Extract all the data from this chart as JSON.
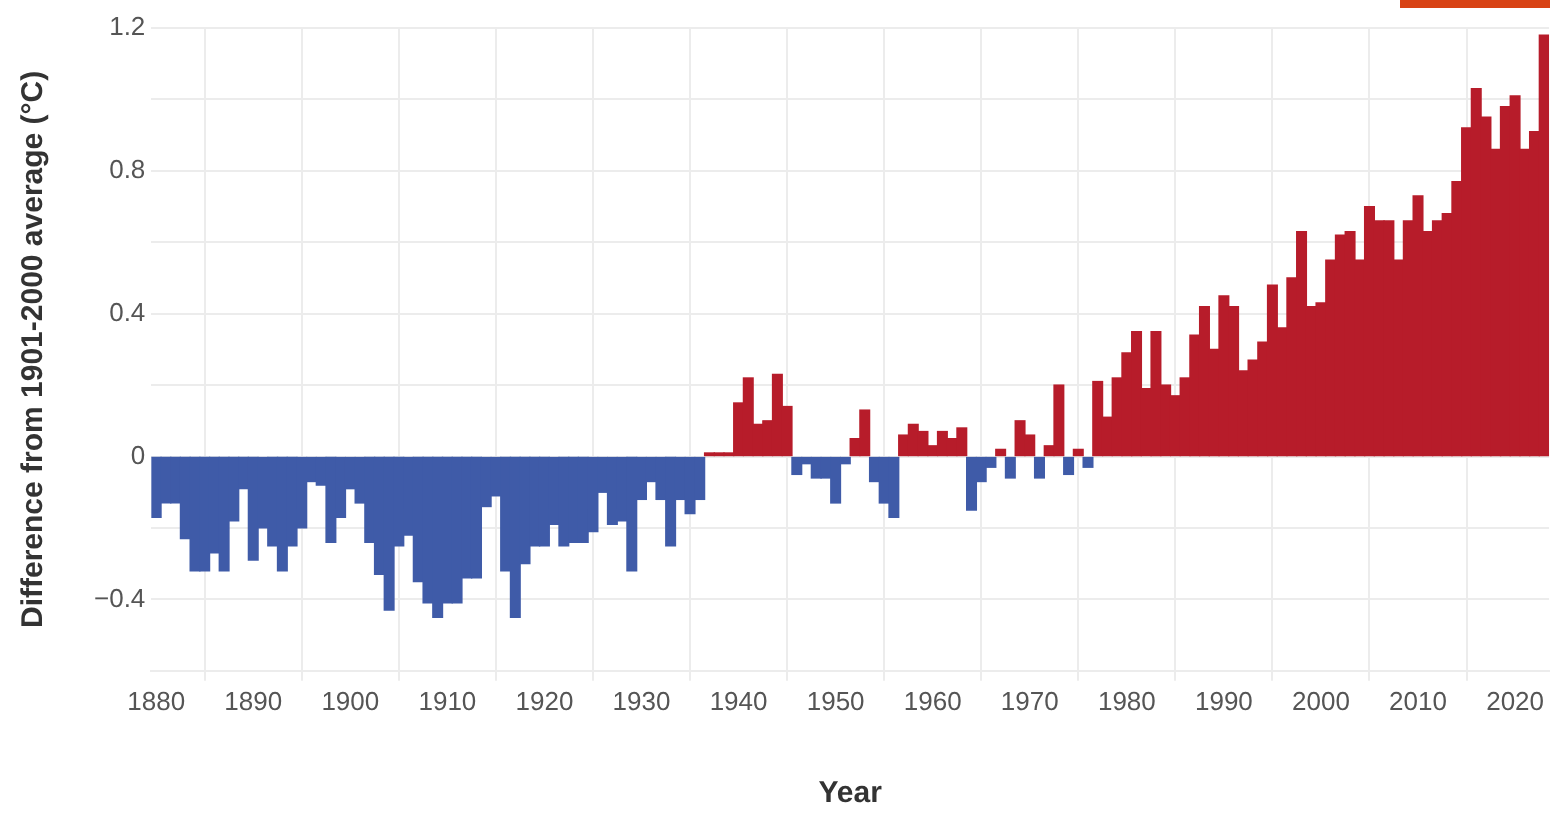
{
  "chart_data": {
    "type": "bar",
    "xlabel": "Year",
    "ylabel": "Difference from 1901-2000 average (°C)",
    "x": [
      1880,
      1881,
      1882,
      1883,
      1884,
      1885,
      1886,
      1887,
      1888,
      1889,
      1890,
      1891,
      1892,
      1893,
      1894,
      1895,
      1896,
      1897,
      1898,
      1899,
      1900,
      1901,
      1902,
      1903,
      1904,
      1905,
      1906,
      1907,
      1908,
      1909,
      1910,
      1911,
      1912,
      1913,
      1914,
      1915,
      1916,
      1917,
      1918,
      1919,
      1920,
      1921,
      1922,
      1923,
      1924,
      1925,
      1926,
      1927,
      1928,
      1929,
      1930,
      1931,
      1932,
      1933,
      1934,
      1935,
      1936,
      1937,
      1938,
      1939,
      1940,
      1941,
      1942,
      1943,
      1944,
      1945,
      1946,
      1947,
      1948,
      1949,
      1950,
      1951,
      1952,
      1953,
      1954,
      1955,
      1956,
      1957,
      1958,
      1959,
      1960,
      1961,
      1962,
      1963,
      1964,
      1965,
      1966,
      1967,
      1968,
      1969,
      1970,
      1971,
      1972,
      1973,
      1974,
      1975,
      1976,
      1977,
      1978,
      1979,
      1980,
      1981,
      1982,
      1983,
      1984,
      1985,
      1986,
      1987,
      1988,
      1989,
      1990,
      1991,
      1992,
      1993,
      1994,
      1995,
      1996,
      1997,
      1998,
      1999,
      2000,
      2001,
      2002,
      2003,
      2004,
      2005,
      2006,
      2007,
      2008,
      2009,
      2010,
      2011,
      2012,
      2013,
      2014,
      2015,
      2016,
      2017,
      2018,
      2019,
      2020,
      2021,
      2022,
      2023
    ],
    "values": [
      -0.17,
      -0.13,
      -0.13,
      -0.23,
      -0.32,
      -0.32,
      -0.27,
      -0.32,
      -0.18,
      -0.09,
      -0.29,
      -0.2,
      -0.25,
      -0.32,
      -0.25,
      -0.2,
      -0.07,
      -0.08,
      -0.24,
      -0.17,
      -0.09,
      -0.13,
      -0.24,
      -0.33,
      -0.43,
      -0.25,
      -0.22,
      -0.35,
      -0.41,
      -0.45,
      -0.41,
      -0.41,
      -0.34,
      -0.34,
      -0.14,
      -0.11,
      -0.32,
      -0.45,
      -0.3,
      -0.25,
      -0.25,
      -0.19,
      -0.25,
      -0.24,
      -0.24,
      -0.21,
      -0.1,
      -0.19,
      -0.18,
      -0.32,
      -0.12,
      -0.07,
      -0.12,
      -0.25,
      -0.12,
      -0.16,
      -0.12,
      0.01,
      0.01,
      0.01,
      0.15,
      0.22,
      0.09,
      0.1,
      0.23,
      0.14,
      -0.05,
      -0.02,
      -0.06,
      -0.06,
      -0.13,
      -0.02,
      0.05,
      0.13,
      -0.07,
      -0.13,
      -0.17,
      0.06,
      0.09,
      0.07,
      0.03,
      0.07,
      0.05,
      0.08,
      -0.15,
      -0.07,
      -0.03,
      0.02,
      -0.06,
      0.1,
      0.06,
      -0.06,
      0.03,
      0.2,
      -0.05,
      0.02,
      -0.03,
      0.21,
      0.11,
      0.22,
      0.29,
      0.35,
      0.19,
      0.35,
      0.2,
      0.17,
      0.22,
      0.34,
      0.42,
      0.3,
      0.45,
      0.42,
      0.24,
      0.27,
      0.32,
      0.48,
      0.36,
      0.5,
      0.63,
      0.42,
      0.43,
      0.55,
      0.62,
      0.63,
      0.55,
      0.7,
      0.66,
      0.66,
      0.55,
      0.66,
      0.73,
      0.63,
      0.66,
      0.68,
      0.77,
      0.92,
      1.03,
      0.95,
      0.86,
      0.98,
      1.01,
      0.86,
      0.91,
      1.18
    ],
    "colors": [
      "#3f5ba8",
      "#3f5ba8",
      "#3f5ba8",
      "#3f5ba8",
      "#3f5ba8",
      "#3f5ba8",
      "#3f5ba8",
      "#3f5ba8",
      "#3f5ba8",
      "#3f5ba8",
      "#3f5ba8",
      "#3f5ba8",
      "#3f5ba8",
      "#3f5ba8",
      "#3f5ba8",
      "#3f5ba8",
      "#3f5ba8",
      "#3f5ba8",
      "#3f5ba8",
      "#3f5ba8",
      "#3f5ba8",
      "#3f5ba8",
      "#3f5ba8",
      "#3f5ba8",
      "#3f5ba8",
      "#3f5ba8",
      "#3f5ba8",
      "#3f5ba8",
      "#3f5ba8",
      "#3f5ba8",
      "#3f5ba8",
      "#3f5ba8",
      "#3f5ba8",
      "#3f5ba8",
      "#3f5ba8",
      "#3f5ba8",
      "#3f5ba8",
      "#3f5ba8",
      "#3f5ba8",
      "#3f5ba8",
      "#3f5ba8",
      "#3f5ba8",
      "#3f5ba8",
      "#3f5ba8",
      "#3f5ba8",
      "#3f5ba8",
      "#3f5ba8",
      "#3f5ba8",
      "#3f5ba8",
      "#3f5ba8",
      "#3f5ba8",
      "#3f5ba8",
      "#3f5ba8",
      "#3f5ba8",
      "#3f5ba8",
      "#3f5ba8",
      "#3f5ba8",
      "#b71c2a",
      "#b71c2a",
      "#b71c2a",
      "#b71c2a",
      "#b71c2a",
      "#b71c2a",
      "#b71c2a",
      "#b71c2a",
      "#b71c2a",
      "#3f5ba8",
      "#3f5ba8",
      "#3f5ba8",
      "#3f5ba8",
      "#3f5ba8",
      "#3f5ba8",
      "#b71c2a",
      "#b71c2a",
      "#3f5ba8",
      "#3f5ba8",
      "#3f5ba8",
      "#b71c2a",
      "#b71c2a",
      "#b71c2a",
      "#b71c2a",
      "#b71c2a",
      "#b71c2a",
      "#b71c2a",
      "#3f5ba8",
      "#3f5ba8",
      "#3f5ba8",
      "#b71c2a",
      "#3f5ba8",
      "#b71c2a",
      "#b71c2a",
      "#3f5ba8",
      "#b71c2a",
      "#b71c2a",
      "#3f5ba8",
      "#b71c2a",
      "#3f5ba8",
      "#b71c2a",
      "#b71c2a",
      "#b71c2a",
      "#b71c2a",
      "#b71c2a",
      "#b71c2a",
      "#b71c2a",
      "#b71c2a",
      "#b71c2a",
      "#b71c2a",
      "#b71c2a",
      "#b71c2a",
      "#b71c2a",
      "#b71c2a",
      "#b71c2a",
      "#b71c2a",
      "#b71c2a",
      "#b71c2a",
      "#b71c2a",
      "#b71c2a",
      "#b71c2a",
      "#b71c2a",
      "#b71c2a",
      "#b71c2a",
      "#b71c2a",
      "#b71c2a",
      "#b71c2a",
      "#b71c2a",
      "#b71c2a",
      "#b71c2a",
      "#b71c2a",
      "#b71c2a",
      "#b71c2a",
      "#b71c2a",
      "#b71c2a",
      "#b71c2a",
      "#b71c2a",
      "#b71c2a",
      "#b71c2a",
      "#b71c2a",
      "#b71c2a",
      "#b71c2a",
      "#b71c2a",
      "#b71c2a",
      "#b71c2a",
      "#b71c2a",
      "#b71c2a"
    ],
    "xlim": [
      1879.5,
      2023.5
    ],
    "xticks": [
      1880,
      1890,
      1900,
      1910,
      1920,
      1930,
      1940,
      1950,
      1960,
      1970,
      1980,
      1990,
      2000,
      2010,
      2020
    ],
    "ylim": [
      -0.6,
      1.2
    ],
    "yticks": [
      {
        "value": -0.6,
        "label": null
      },
      {
        "value": -0.4,
        "label": "−0.4"
      },
      {
        "value": -0.2,
        "label": null
      },
      0,
      {
        "value": 0.2,
        "label": null
      },
      0.4,
      {
        "value": 0.6,
        "label": null
      },
      0.8,
      {
        "value": 1.0,
        "label": null
      },
      1.2
    ],
    "grid": true,
    "legend": false
  }
}
